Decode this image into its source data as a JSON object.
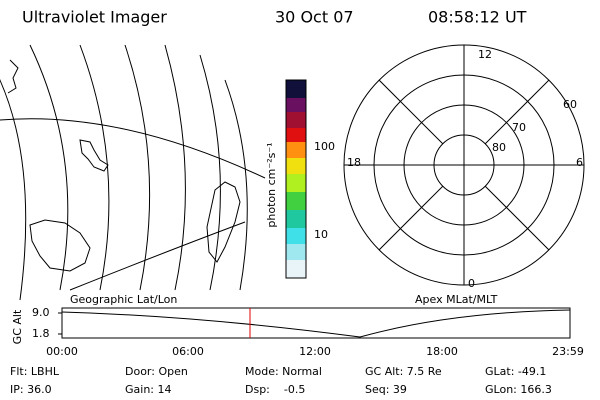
{
  "header": {
    "title": "Ultraviolet Imager",
    "date": "30 Oct 07",
    "time": "08:58:12 UT"
  },
  "colorbar": {
    "label": "photon cm⁻²s⁻¹",
    "ticks": [
      "100",
      "10"
    ]
  },
  "geo_label": "Geographic Lat/Lon",
  "polar": {
    "label": "Apex MLat/MLT",
    "mlt": [
      "12",
      "18",
      "6",
      "0"
    ],
    "lat": [
      "60",
      "70",
      "80"
    ]
  },
  "timeline": {
    "axis_label": "GC Alt",
    "yticks": [
      "9.0",
      "1.8"
    ],
    "xticks": [
      "00:00",
      "06:00",
      "12:00",
      "18:00",
      "23:59"
    ]
  },
  "footer": [
    [
      "Flt: LBHL",
      "Door: Open",
      "Mode: Normal",
      "GC Alt: 7.5 Re",
      "GLat: -49.1"
    ],
    [
      "IP: 36.0",
      "Gain: 14",
      "Dsp:    -0.5",
      "Seq: 39",
      "GLon: 166.3"
    ]
  ]
}
